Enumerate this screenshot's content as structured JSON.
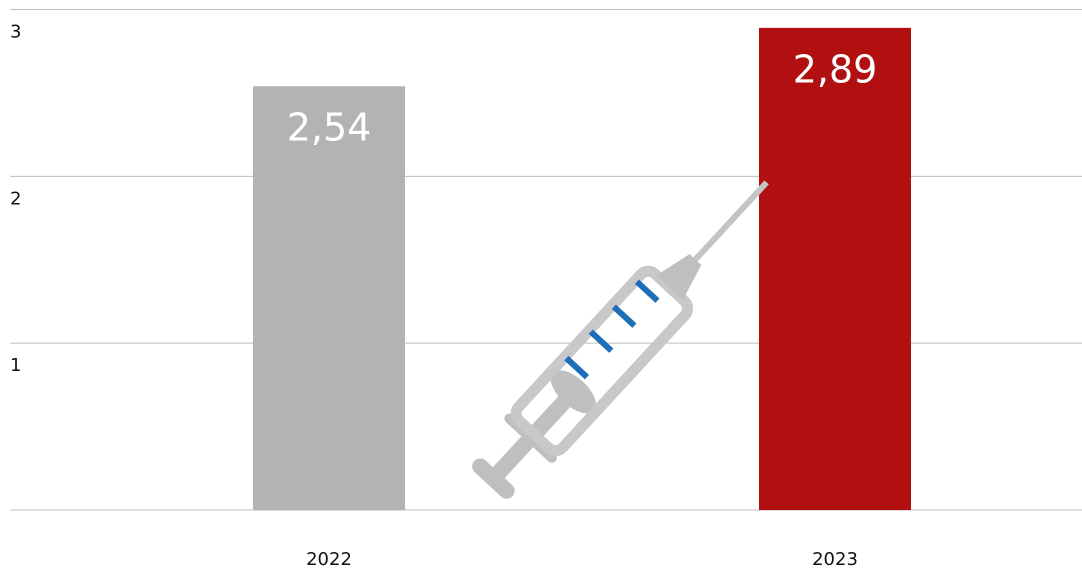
{
  "chart_data": {
    "type": "bar",
    "categories": [
      "2022",
      "2023"
    ],
    "values": [
      2.54,
      2.89
    ],
    "value_labels": [
      "2,54",
      "2,89"
    ],
    "colors": [
      "#b3b3b3",
      "#b10f10"
    ],
    "ylim": [
      0,
      3
    ],
    "yticks": [
      1,
      2,
      3
    ],
    "grid": true
  }
}
